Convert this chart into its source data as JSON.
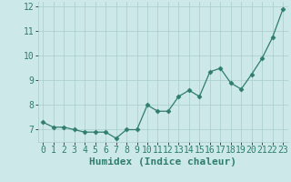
{
  "x": [
    0,
    1,
    2,
    3,
    4,
    5,
    6,
    7,
    8,
    9,
    10,
    11,
    12,
    13,
    14,
    15,
    16,
    17,
    18,
    19,
    20,
    21,
    22,
    23
  ],
  "y": [
    7.3,
    7.1,
    7.1,
    7.0,
    6.9,
    6.9,
    6.9,
    6.65,
    7.0,
    7.0,
    8.0,
    7.75,
    7.75,
    8.35,
    8.6,
    8.35,
    9.35,
    9.5,
    8.9,
    8.65,
    9.25,
    9.9,
    10.75,
    11.9
  ],
  "xlabel": "Humidex (Indice chaleur)",
  "ylim": [
    6.5,
    12.2
  ],
  "xlim": [
    -0.5,
    23.5
  ],
  "yticks": [
    7,
    8,
    9,
    10,
    11,
    12
  ],
  "xticks": [
    0,
    1,
    2,
    3,
    4,
    5,
    6,
    7,
    8,
    9,
    10,
    11,
    12,
    13,
    14,
    15,
    16,
    17,
    18,
    19,
    20,
    21,
    22,
    23
  ],
  "line_color": "#2e7d6e",
  "marker": "D",
  "marker_size": 2.5,
  "bg_color": "#cde8e8",
  "grid_color": "#a8cccc",
  "xlabel_fontsize": 8,
  "tick_fontsize": 7
}
